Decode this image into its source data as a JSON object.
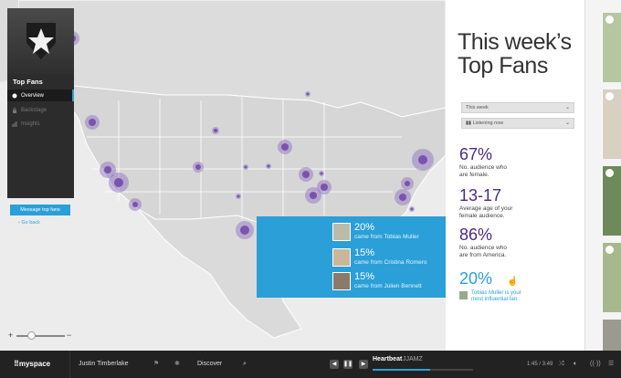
{
  "sidebar": {
    "title": "Top Fans",
    "nav": [
      {
        "label": "Overview",
        "icon": "fan-icon",
        "active": true
      },
      {
        "label": "Backstage",
        "icon": "lock-icon",
        "active": false
      },
      {
        "label": "Insights",
        "icon": "bar-chart-icon",
        "active": false
      }
    ],
    "message_button": "Message top fans",
    "go_back": "Go back"
  },
  "zoom": {
    "plus": "+",
    "minus": "−"
  },
  "tooltip": {
    "rows": [
      {
        "percent": "20%",
        "label": "came from Tobias Muller"
      },
      {
        "percent": "15%",
        "label": "came from Cristina Romero"
      },
      {
        "percent": "15%",
        "label": "came from Julien Bennett"
      }
    ]
  },
  "panel": {
    "title_line1": "This week’s",
    "title_line2": "Top Fans",
    "filter_period": "This week",
    "filter_mode": "Listening now",
    "stats": [
      {
        "value": "67%",
        "desc_line1": "No. audience who",
        "desc_line2": "are female."
      },
      {
        "value": "13-17",
        "desc_line1": "Average age of your",
        "desc_line2": "female audience."
      },
      {
        "value": "86%",
        "desc_line1": "No. audience who",
        "desc_line2": "are from America."
      },
      {
        "value": "20%",
        "desc_line1": "Tobias Muller is your",
        "desc_line2": "most influential fan"
      }
    ]
  },
  "bottom_bar": {
    "brand": "myspace",
    "artist": "Justin Timberlake",
    "discover": "Discover",
    "track_title": "Heartbeat",
    "track_artist": "JJAMZ",
    "time": "1:45 / 3:49",
    "progress": 0.57
  },
  "colors": {
    "accent": "#2a9fd8",
    "purple": "#4b2b82",
    "bubble": "#8c6bbf"
  }
}
